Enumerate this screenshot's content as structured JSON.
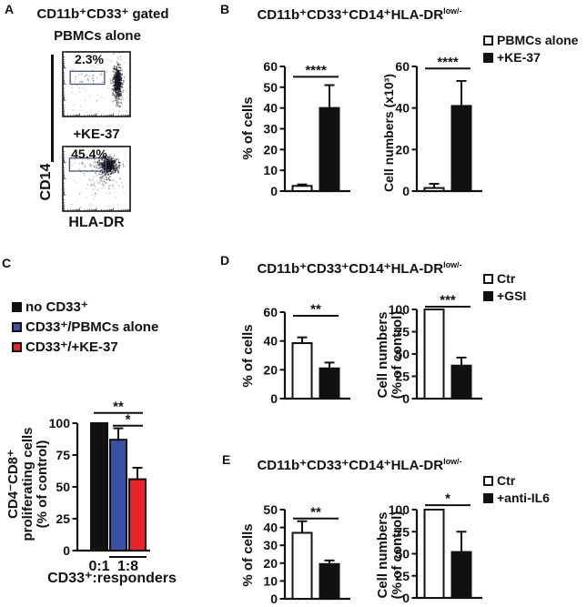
{
  "figure": {
    "panels": {
      "A": {
        "letter": "A",
        "title": "CD11b⁺CD33⁺ gated",
        "plot1_condition": "PBMCs alone",
        "plot1_pct": "2.3%",
        "plot2_condition": "+KE-37",
        "plot2_pct": "45.4%",
        "xlabel": "HLA-DR",
        "ylabel": "CD14"
      },
      "B": {
        "letter": "B",
        "title_main": "CD11b⁺CD33⁺CD14⁺HLA-DR",
        "title_sup": "low/-",
        "legend": [
          {
            "label": "PBMCs alone",
            "fill": "#ffffff"
          },
          {
            "label": "+KE-37",
            "fill": "#111111"
          }
        ]
      },
      "C": {
        "letter": "C",
        "legend": [
          {
            "label": "no CD33⁺",
            "fill": "#111111"
          },
          {
            "label": "CD33⁺/PBMCs alone",
            "fill": "#3b51a3"
          },
          {
            "label": "CD33⁺/+KE-37",
            "fill": "#e8232b"
          }
        ]
      },
      "D": {
        "letter": "D",
        "title_main": "CD11b⁺CD33⁺CD14⁺HLA-DR",
        "title_sup": "low/-",
        "legend": [
          {
            "label": "Ctr",
            "fill": "#ffffff"
          },
          {
            "label": "+GSI",
            "fill": "#111111"
          }
        ]
      },
      "E": {
        "letter": "E",
        "title_main": "CD11b⁺CD33⁺CD14⁺HLA-DR",
        "title_sup": "low/-",
        "legend": [
          {
            "label": "Ctr",
            "fill": "#ffffff"
          },
          {
            "label": "+anti-IL6",
            "fill": "#111111"
          }
        ]
      }
    }
  },
  "chart_data": {
    "A_flow": [
      {
        "type": "scatter",
        "panel": "A",
        "condition": "PBMCs alone",
        "gate_percent": 2.3,
        "xlabel": "HLA-DR",
        "ylabel": "CD14",
        "gate": {
          "x0": 0.11,
          "y0": 0.3,
          "x1": 0.62,
          "y1": 0.5
        },
        "clusters": [
          {
            "cx": 0.81,
            "cy": 0.5,
            "sdx": 0.035,
            "sdy": 0.15,
            "n": 380,
            "op": 0.45
          },
          {
            "cx": 0.82,
            "cy": 0.45,
            "sdx": 0.025,
            "sdy": 0.09,
            "n": 220,
            "op": 0.75
          },
          {
            "cx": 0.4,
            "cy": 0.4,
            "sdx": 0.14,
            "sdy": 0.05,
            "n": 22,
            "op": 0.35
          }
        ],
        "noise": 70
      },
      {
        "type": "scatter",
        "panel": "A",
        "condition": "+KE-37",
        "gate_percent": 45.4,
        "xlabel": "HLA-DR",
        "ylabel": "CD14",
        "gate": {
          "x0": 0.1,
          "y0": 0.18,
          "x1": 0.64,
          "y1": 0.38
        },
        "clusters": [
          {
            "cx": 0.67,
            "cy": 0.3,
            "sdx": 0.075,
            "sdy": 0.075,
            "n": 420,
            "op": 0.5
          },
          {
            "cx": 0.68,
            "cy": 0.29,
            "sdx": 0.04,
            "sdy": 0.04,
            "n": 230,
            "op": 0.8
          },
          {
            "cx": 0.6,
            "cy": 0.52,
            "sdx": 0.1,
            "sdy": 0.11,
            "n": 70,
            "op": 0.3
          },
          {
            "cx": 0.35,
            "cy": 0.3,
            "sdx": 0.12,
            "sdy": 0.05,
            "n": 22,
            "op": 0.3
          }
        ],
        "noise": 55
      }
    ],
    "B_pct": {
      "type": "bar",
      "panel": "B",
      "ylabel": "% of cells",
      "categories": [
        "PBMCs alone",
        "+KE-37"
      ],
      "values": [
        2.5,
        40
      ],
      "errors": [
        0.7,
        11
      ],
      "colors": [
        "#ffffff",
        "#111111"
      ],
      "ylim": [
        0,
        60
      ],
      "yticks": [
        0,
        10,
        20,
        30,
        40,
        50,
        60
      ],
      "significance": [
        {
          "from": 0,
          "to": 1,
          "label": "****",
          "y": 55
        }
      ]
    },
    "B_num": {
      "type": "bar",
      "panel": "B",
      "ylabel": "Cell numbers (x10³)",
      "categories": [
        "PBMCs alone",
        "+KE-37"
      ],
      "values": [
        1.5,
        41
      ],
      "errors": [
        2,
        12
      ],
      "colors": [
        "#ffffff",
        "#111111"
      ],
      "ylim": [
        0,
        60
      ],
      "yticks": [
        0,
        20,
        40,
        60
      ],
      "significance": [
        {
          "from": 0,
          "to": 1,
          "label": "****",
          "y": 59
        }
      ]
    },
    "C": {
      "type": "bar",
      "panel": "C",
      "ylabel": "CD4⁻CD8⁺ proliferating cells (% of control)",
      "ylabel_lines": [
        "CD4⁻CD8⁺",
        "proliferating cells",
        "(% of control)"
      ],
      "categories": [
        "no CD33⁺",
        "CD33⁺/PBMCs alone",
        "CD33⁺/+KE-37"
      ],
      "values": [
        100,
        87,
        56
      ],
      "errors": [
        0,
        9,
        9
      ],
      "colors": [
        "#111111",
        "#3b51a3",
        "#e8232b"
      ],
      "ylim": [
        0,
        100
      ],
      "yticks": [
        0,
        25,
        50,
        75,
        100
      ],
      "significance": [
        {
          "from": 0,
          "to": 2,
          "label": "**",
          "y": 108
        },
        {
          "from": 1,
          "to": 2,
          "label": "*",
          "y": 98
        }
      ],
      "xticks": [
        {
          "label": "0:1",
          "bars": [
            0
          ],
          "underline": false
        },
        {
          "label": "1:8",
          "bars": [
            1,
            2
          ],
          "underline": true
        }
      ],
      "x_group_label": "CD33⁺:responders"
    },
    "D_pct": {
      "type": "bar",
      "panel": "D",
      "ylabel": "% of cells",
      "categories": [
        "Ctr",
        "+GSI"
      ],
      "values": [
        38.5,
        21
      ],
      "errors": [
        4,
        4
      ],
      "colors": [
        "#ffffff",
        "#111111"
      ],
      "ylim": [
        0,
        60
      ],
      "yticks": [
        0,
        20,
        40,
        60
      ],
      "significance": [
        {
          "from": 0,
          "to": 1,
          "label": "**",
          "y": 57.5
        }
      ]
    },
    "D_num": {
      "type": "bar",
      "panel": "D",
      "ylabel": "Cell numbers (% of control)",
      "ylabel_lines": [
        "Cell numbers",
        "(% of control)"
      ],
      "categories": [
        "Ctr",
        "+GSI"
      ],
      "values": [
        100,
        37
      ],
      "errors": [
        0,
        9
      ],
      "colors": [
        "#ffffff",
        "#111111"
      ],
      "ylim": [
        0,
        100
      ],
      "yticks": [
        0,
        25,
        50,
        75,
        100
      ],
      "significance": [
        {
          "from": 0,
          "to": 1,
          "label": "***",
          "y": 103
        }
      ]
    },
    "E_pct": {
      "type": "bar",
      "panel": "E",
      "ylabel": "% of cells",
      "categories": [
        "Ctr",
        "+anti-IL6"
      ],
      "values": [
        37,
        19.5
      ],
      "errors": [
        6.5,
        2
      ],
      "colors": [
        "#ffffff",
        "#111111"
      ],
      "ylim": [
        0,
        50
      ],
      "yticks": [
        0,
        10,
        20,
        30,
        40,
        50
      ],
      "significance": [
        {
          "from": 0,
          "to": 1,
          "label": "**",
          "y": 45
        }
      ]
    },
    "E_num": {
      "type": "bar",
      "panel": "E",
      "ylabel": "Cell numbers (% of control)",
      "ylabel_lines": [
        "Cell numbers",
        "(% of control)"
      ],
      "categories": [
        "Ctr",
        "+anti-IL6"
      ],
      "values": [
        100,
        52
      ],
      "errors": [
        0,
        23
      ],
      "colors": [
        "#ffffff",
        "#111111"
      ],
      "ylim": [
        0,
        100
      ],
      "yticks": [
        0,
        25,
        50,
        75,
        100
      ],
      "significance": [
        {
          "from": 0,
          "to": 1,
          "label": "*",
          "y": 105
        }
      ]
    }
  }
}
